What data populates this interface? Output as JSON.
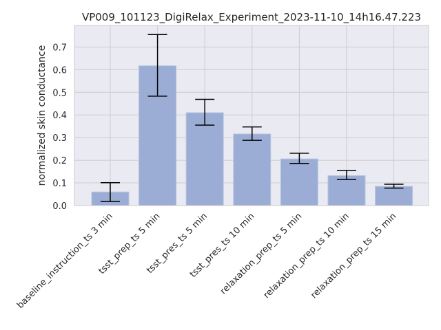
{
  "chart_data": {
    "type": "bar",
    "title": "VP009_101123_DigiRelax_Experiment_2023-11-10_14h16.47.223",
    "xlabel": "",
    "ylabel": "normalized skin conductance",
    "ylim": [
      0,
      0.8
    ],
    "yticks": [
      0.0,
      0.1,
      0.2,
      0.3,
      0.4,
      0.5,
      0.6,
      0.7
    ],
    "ytick_labels": [
      "0.0",
      "0.1",
      "0.2",
      "0.3",
      "0.4",
      "0.5",
      "0.6",
      "0.7"
    ],
    "grid": true,
    "categories": [
      "baseline_instruction_ts 3 min",
      "tsst_prep_ts 5 min",
      "tsst_pres_ts 5 min",
      "tsst_pres_ts 10 min",
      "relaxation_prep_ts 5 min",
      "relaxation_prep_ts 10 min",
      "relaxation_prep_ts 15 min"
    ],
    "values": [
      0.06,
      0.617,
      0.41,
      0.316,
      0.206,
      0.132,
      0.085
    ],
    "error_low": [
      0.018,
      0.483,
      0.355,
      0.288,
      0.186,
      0.115,
      0.077
    ],
    "error_high": [
      0.101,
      0.755,
      0.469,
      0.347,
      0.231,
      0.155,
      0.094
    ],
    "colors": {
      "bar": "#9badd4",
      "bar_edge": "#b8c5e0",
      "plot_bg": "#eaeaf2",
      "grid": "#cccccc",
      "error": "#000000",
      "text": "#262626"
    }
  }
}
